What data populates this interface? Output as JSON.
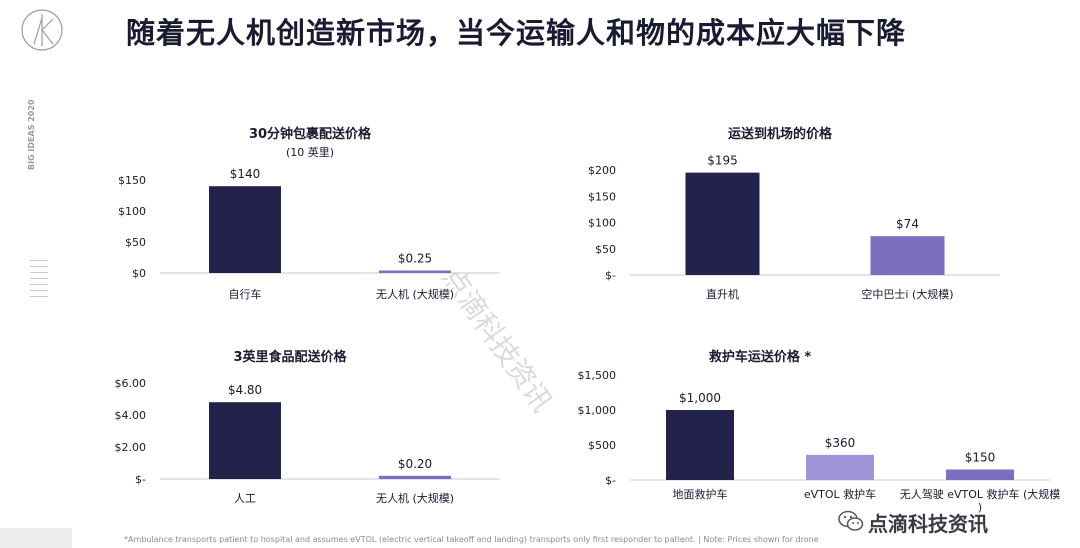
{
  "header": {
    "title": "随着无人机创造新市场，当今运输人和物的成本应大幅下降",
    "side_label": "BIG IDEAS 2020"
  },
  "chart_data": [
    {
      "type": "bar",
      "title": "30分钟包裹配送价格",
      "subtitle": "(10 英里)",
      "categories": [
        "自行车",
        "无人机 (大规模)"
      ],
      "values": [
        140,
        0.25
      ],
      "value_labels": [
        "$140",
        "$0.25"
      ],
      "yticks": [
        "$0",
        "$50",
        "$100",
        "$150"
      ],
      "ylim": [
        0,
        150
      ],
      "colors": [
        "#22224a",
        "#7b6fbf"
      ]
    },
    {
      "type": "bar",
      "title": "运送到机场的价格",
      "categories": [
        "直升机",
        "空中巴士i (大规模)"
      ],
      "values": [
        195,
        74
      ],
      "value_labels": [
        "$195",
        "$74"
      ],
      "yticks": [
        "$-",
        "$50",
        "$100",
        "$150",
        "$200"
      ],
      "ylim": [
        0,
        200
      ],
      "colors": [
        "#22224a",
        "#7b6fbf"
      ]
    },
    {
      "type": "bar",
      "title": "3英里食品配送价格",
      "categories": [
        "人工",
        "无人机 (大规模)"
      ],
      "values": [
        4.8,
        0.2
      ],
      "value_labels": [
        "$4.80",
        "$0.20"
      ],
      "yticks": [
        "$-",
        "$2.00",
        "$4.00",
        "$6.00"
      ],
      "ylim": [
        0,
        6
      ],
      "colors": [
        "#22224a",
        "#7b6fbf"
      ]
    },
    {
      "type": "bar",
      "title": "救护车运送价格 *",
      "categories": [
        "地面救护车",
        "eVTOL 救护车",
        "无人驾驶 eVTOL 救护车 (大规模)"
      ],
      "values": [
        1000,
        360,
        150
      ],
      "value_labels": [
        "$1,000",
        "$360",
        "$150"
      ],
      "yticks": [
        "$-",
        "$500",
        "$1,000",
        "$1,500"
      ],
      "ylim": [
        0,
        1500
      ],
      "colors": [
        "#22224a",
        "#9c94d6",
        "#7b6fbf"
      ]
    }
  ],
  "footnote": "*Ambulance transports patient to hospital and assumes eVTOL (electric vertical takeoff and landing) transports only first responder to patient.  |  Note: Prices shown for drone",
  "brand": "点滴科技资讯",
  "watermark": "点滴科技资讯"
}
